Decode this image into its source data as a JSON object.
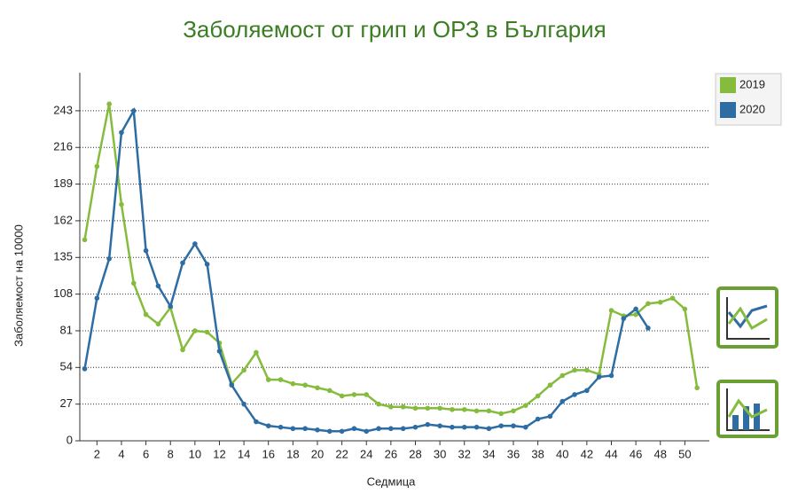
{
  "chart_data": {
    "type": "line",
    "title": "Заболяемост от грип и ОРЗ в България",
    "x_label": "Седмица",
    "y_label": "Заболяемост на 10000",
    "x": [
      1,
      2,
      3,
      4,
      5,
      6,
      7,
      8,
      9,
      10,
      11,
      12,
      13,
      14,
      15,
      16,
      17,
      18,
      19,
      20,
      21,
      22,
      23,
      24,
      25,
      26,
      27,
      28,
      29,
      30,
      31,
      32,
      33,
      34,
      35,
      36,
      37,
      38,
      39,
      40,
      41,
      42,
      43,
      44,
      45,
      46,
      47,
      48,
      49,
      50,
      51
    ],
    "series": [
      {
        "name": "2019",
        "color": "#86bc3d",
        "values": [
          148,
          202,
          248,
          174,
          116,
          93,
          86,
          98,
          67,
          81,
          80,
          72,
          42,
          52,
          65,
          45,
          45,
          42,
          41,
          39,
          37,
          33,
          34,
          34,
          27,
          25,
          25,
          24,
          24,
          24,
          23,
          23,
          22,
          22,
          20,
          22,
          26,
          33,
          41,
          48,
          52,
          52,
          49,
          96,
          92,
          93,
          101,
          102,
          105,
          97,
          39
        ]
      },
      {
        "name": "2020",
        "color": "#2e6da4",
        "values": [
          53,
          105,
          134,
          227,
          243,
          140,
          114,
          99,
          131,
          145,
          130,
          66,
          41,
          27,
          14,
          11,
          10,
          9,
          9,
          8,
          7,
          7,
          9,
          7,
          9,
          9,
          9,
          10,
          12,
          11,
          10,
          10,
          10,
          9,
          11,
          11,
          10,
          16,
          18,
          29,
          34,
          37,
          47,
          48,
          90,
          97,
          83,
          null,
          null,
          null,
          null
        ]
      }
    ],
    "xlim": [
      0.6,
      52
    ],
    "xticks": [
      2,
      4,
      6,
      8,
      10,
      12,
      14,
      16,
      18,
      20,
      22,
      24,
      26,
      28,
      30,
      32,
      34,
      36,
      38,
      40,
      42,
      44,
      46,
      48,
      50
    ],
    "ylim": [
      0,
      271
    ],
    "yticks": [
      0,
      27,
      54,
      81,
      108,
      135,
      162,
      189,
      216,
      243
    ],
    "grid": true,
    "legend": "right"
  }
}
